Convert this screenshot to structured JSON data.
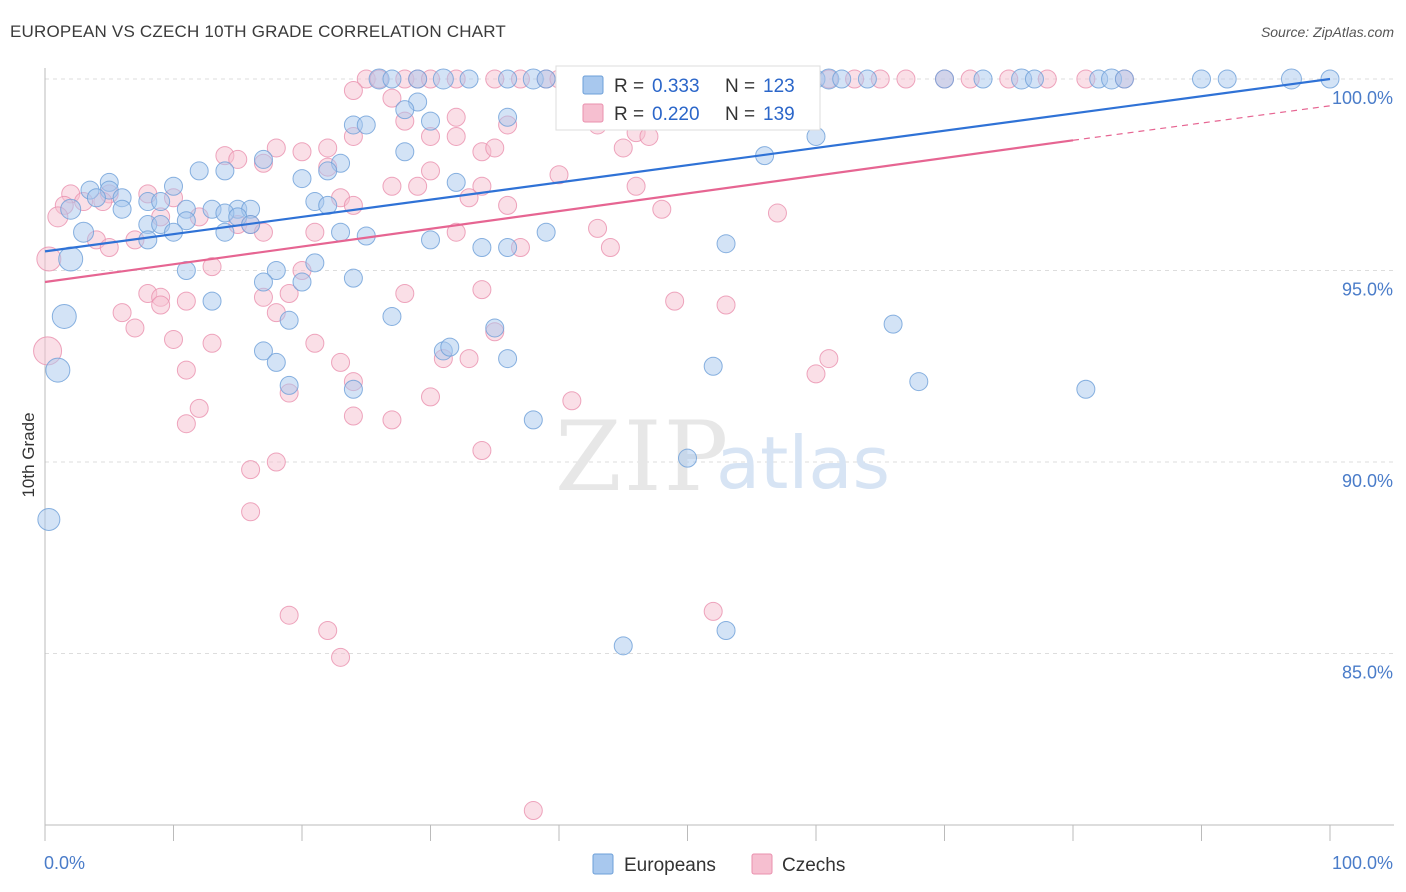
{
  "title": "EUROPEAN VS CZECH 10TH GRADE CORRELATION CHART",
  "source": "Source: ZipAtlas.com",
  "watermark": {
    "zip": "ZIP",
    "atlas": "atlas"
  },
  "colors": {
    "european_fill": "#a8c8ee",
    "european_stroke": "#6d9fd8",
    "european_line": "#2f72d6",
    "czech_fill": "#f6bfd0",
    "czech_stroke": "#ea90ae",
    "czech_line": "#e66592",
    "tick": "#4a7cc9",
    "grid": "#dddddd"
  },
  "legend_top": {
    "rows": [
      {
        "r_label": "R =",
        "r_value": "0.333",
        "n_label": "N =",
        "n_value": "123"
      },
      {
        "r_label": "R =",
        "r_value": "0.220",
        "n_label": "N =",
        "n_value": "139"
      }
    ]
  },
  "legend_bottom": {
    "items": [
      "Europeans",
      "Czechs"
    ]
  },
  "chart_data": {
    "type": "scatter",
    "title": "EUROPEAN VS CZECH 10TH GRADE CORRELATION CHART",
    "xlabel": "",
    "ylabel": "10th Grade",
    "xlim": [
      0,
      100
    ],
    "ylim": [
      80.5,
      100.8
    ],
    "x_tick_labels": [
      "0.0%",
      "100.0%"
    ],
    "y_ticks": [
      85,
      90,
      95,
      100
    ],
    "y_tick_labels": [
      "85.0%",
      "90.0%",
      "95.0%",
      "100.0%"
    ],
    "grid": true,
    "legend": "bottom-center",
    "series": [
      {
        "name": "Europeans",
        "r": 0.333,
        "n": 123,
        "trend": {
          "x": [
            0,
            100
          ],
          "y": [
            95.5,
            100.0
          ]
        },
        "points": [
          [
            26,
            100,
            10
          ],
          [
            27,
            100,
            9
          ],
          [
            29,
            100,
            9
          ],
          [
            31,
            100,
            10
          ],
          [
            33,
            100,
            9
          ],
          [
            36,
            100,
            9
          ],
          [
            38,
            100,
            10
          ],
          [
            39,
            100,
            9
          ],
          [
            41,
            100,
            9
          ],
          [
            42,
            100,
            10
          ],
          [
            44,
            100,
            9
          ],
          [
            45,
            100,
            9
          ],
          [
            48,
            100,
            10
          ],
          [
            50,
            100,
            9
          ],
          [
            51,
            100,
            9
          ],
          [
            53,
            100,
            10
          ],
          [
            55,
            100,
            9
          ],
          [
            56,
            100,
            9
          ],
          [
            60,
            100,
            9
          ],
          [
            61,
            100,
            10
          ],
          [
            62,
            100,
            9
          ],
          [
            64,
            100,
            9
          ],
          [
            70,
            100,
            9
          ],
          [
            73,
            100,
            9
          ],
          [
            76,
            100,
            10
          ],
          [
            77,
            100,
            9
          ],
          [
            82,
            100,
            9
          ],
          [
            83,
            100,
            10
          ],
          [
            84,
            100,
            9
          ],
          [
            90,
            100,
            9
          ],
          [
            92,
            100,
            9
          ],
          [
            97,
            100,
            10
          ],
          [
            100,
            100,
            9
          ],
          [
            29,
            99.4,
            9
          ],
          [
            28,
            99.2,
            9
          ],
          [
            30,
            98.9,
            9
          ],
          [
            24,
            98.8,
            9
          ],
          [
            25,
            98.8,
            9
          ],
          [
            36,
            99.0,
            9
          ],
          [
            60,
            98.5,
            9
          ],
          [
            28,
            98.1,
            9
          ],
          [
            17,
            97.9,
            9
          ],
          [
            23,
            97.8,
            9
          ],
          [
            12,
            97.6,
            9
          ],
          [
            14,
            97.6,
            9
          ],
          [
            22,
            97.6,
            9
          ],
          [
            56,
            98.0,
            9
          ],
          [
            20,
            97.4,
            9
          ],
          [
            32,
            97.3,
            9
          ],
          [
            5,
            97.3,
            9
          ],
          [
            10,
            97.2,
            9
          ],
          [
            3.5,
            97.1,
            9
          ],
          [
            5,
            97.1,
            9
          ],
          [
            4,
            96.9,
            9
          ],
          [
            6,
            96.9,
            9
          ],
          [
            8,
            96.8,
            9
          ],
          [
            9,
            96.8,
            9
          ],
          [
            21,
            96.8,
            9
          ],
          [
            22,
            96.7,
            9
          ],
          [
            13,
            96.6,
            9
          ],
          [
            2,
            96.6,
            10
          ],
          [
            6,
            96.6,
            9
          ],
          [
            11,
            96.6,
            9
          ],
          [
            15,
            96.6,
            9
          ],
          [
            16,
            96.6,
            9
          ],
          [
            14,
            96.5,
            9
          ],
          [
            15,
            96.4,
            9
          ],
          [
            11,
            96.3,
            9
          ],
          [
            8,
            96.2,
            9
          ],
          [
            9,
            96.2,
            9
          ],
          [
            16,
            96.2,
            9
          ],
          [
            10,
            96.0,
            9
          ],
          [
            14,
            96.0,
            9
          ],
          [
            23,
            96.0,
            9
          ],
          [
            25,
            95.9,
            9
          ],
          [
            3,
            96.0,
            10
          ],
          [
            30,
            95.8,
            9
          ],
          [
            8,
            95.8,
            9
          ],
          [
            34,
            95.6,
            9
          ],
          [
            36,
            95.6,
            9
          ],
          [
            53,
            95.7,
            9
          ],
          [
            39,
            96.0,
            9
          ],
          [
            21,
            95.2,
            9
          ],
          [
            2,
            95.3,
            12
          ],
          [
            11,
            95.0,
            9
          ],
          [
            18,
            95.0,
            9
          ],
          [
            24,
            94.8,
            9
          ],
          [
            17,
            94.7,
            9
          ],
          [
            20,
            94.7,
            9
          ],
          [
            13,
            94.2,
            9
          ],
          [
            1.5,
            93.8,
            12
          ],
          [
            27,
            93.8,
            9
          ],
          [
            19,
            93.7,
            9
          ],
          [
            35,
            93.5,
            9
          ],
          [
            66,
            93.6,
            9
          ],
          [
            17,
            92.9,
            9
          ],
          [
            31,
            92.9,
            9
          ],
          [
            31.5,
            93.0,
            9
          ],
          [
            18,
            92.6,
            9
          ],
          [
            36,
            92.7,
            9
          ],
          [
            52,
            92.5,
            9
          ],
          [
            1,
            92.4,
            12
          ],
          [
            19,
            92.0,
            9
          ],
          [
            24,
            91.9,
            9
          ],
          [
            68,
            92.1,
            9
          ],
          [
            81,
            91.9,
            9
          ],
          [
            38,
            91.1,
            9
          ],
          [
            50,
            90.1,
            9
          ],
          [
            0.3,
            88.5,
            11
          ],
          [
            53,
            85.6,
            9
          ],
          [
            45,
            85.2,
            9
          ]
        ]
      },
      {
        "name": "Czechs",
        "r": 0.22,
        "n": 139,
        "trend": {
          "x": [
            0,
            80
          ],
          "y": [
            94.7,
            98.4
          ]
        },
        "trend_extension": {
          "x": [
            80,
            100
          ],
          "y": [
            98.4,
            99.3
          ]
        },
        "points": [
          [
            25,
            100,
            9
          ],
          [
            26,
            100,
            9
          ],
          [
            28,
            100,
            9
          ],
          [
            29,
            100,
            9
          ],
          [
            30,
            100,
            9
          ],
          [
            32,
            100,
            9
          ],
          [
            35,
            100,
            9
          ],
          [
            37,
            100,
            9
          ],
          [
            39,
            100,
            9
          ],
          [
            40,
            100,
            9
          ],
          [
            41,
            100,
            9
          ],
          [
            43,
            100,
            9
          ],
          [
            44,
            100,
            9
          ],
          [
            46,
            100,
            9
          ],
          [
            48,
            100,
            9
          ],
          [
            50,
            100,
            9
          ],
          [
            52,
            100,
            9
          ],
          [
            54,
            100,
            9
          ],
          [
            57,
            100,
            9
          ],
          [
            59,
            100,
            9
          ],
          [
            61,
            100,
            9
          ],
          [
            63,
            100,
            9
          ],
          [
            65,
            100,
            9
          ],
          [
            67,
            100,
            9
          ],
          [
            70,
            100,
            9
          ],
          [
            72,
            100,
            9
          ],
          [
            75,
            100,
            9
          ],
          [
            78,
            100,
            9
          ],
          [
            81,
            100,
            9
          ],
          [
            84,
            100,
            9
          ],
          [
            24,
            99.7,
            9
          ],
          [
            27,
            99.5,
            9
          ],
          [
            28,
            98.9,
            9
          ],
          [
            32,
            99.0,
            9
          ],
          [
            36,
            98.8,
            9
          ],
          [
            43,
            98.8,
            9
          ],
          [
            46,
            98.6,
            9
          ],
          [
            24,
            98.5,
            9
          ],
          [
            30,
            98.5,
            9
          ],
          [
            32,
            98.5,
            9
          ],
          [
            18,
            98.2,
            9
          ],
          [
            20,
            98.1,
            9
          ],
          [
            22,
            98.2,
            9
          ],
          [
            34,
            98.1,
            9
          ],
          [
            35,
            98.2,
            9
          ],
          [
            45,
            98.2,
            9
          ],
          [
            47,
            98.5,
            9
          ],
          [
            14,
            98.0,
            9
          ],
          [
            15,
            97.9,
            9
          ],
          [
            17,
            97.8,
            9
          ],
          [
            22,
            97.7,
            9
          ],
          [
            30,
            97.6,
            9
          ],
          [
            40,
            97.5,
            9
          ],
          [
            27,
            97.2,
            9
          ],
          [
            29,
            97.2,
            9
          ],
          [
            34,
            97.2,
            9
          ],
          [
            46,
            97.2,
            9
          ],
          [
            2,
            97.0,
            9
          ],
          [
            5,
            97.0,
            9
          ],
          [
            8,
            97.0,
            9
          ],
          [
            10,
            96.9,
            9
          ],
          [
            23,
            96.9,
            9
          ],
          [
            33,
            96.9,
            9
          ],
          [
            24,
            96.7,
            9
          ],
          [
            36,
            96.7,
            9
          ],
          [
            48,
            96.6,
            9
          ],
          [
            57,
            96.5,
            9
          ],
          [
            1.5,
            96.7,
            9
          ],
          [
            3,
            96.8,
            9
          ],
          [
            4.5,
            96.8,
            9
          ],
          [
            1,
            96.4,
            10
          ],
          [
            9,
            96.4,
            9
          ],
          [
            12,
            96.4,
            9
          ],
          [
            15,
            96.2,
            9
          ],
          [
            16,
            96.2,
            9
          ],
          [
            17,
            96.0,
            9
          ],
          [
            21,
            96.0,
            9
          ],
          [
            32,
            96.0,
            9
          ],
          [
            43,
            96.1,
            9
          ],
          [
            44,
            95.6,
            9
          ],
          [
            37,
            95.6,
            9
          ],
          [
            4,
            95.8,
            9
          ],
          [
            5,
            95.6,
            9
          ],
          [
            0.3,
            95.3,
            12
          ],
          [
            7,
            95.8,
            9
          ],
          [
            13,
            95.1,
            9
          ],
          [
            20,
            95.0,
            9
          ],
          [
            8,
            94.4,
            9
          ],
          [
            9,
            94.3,
            9
          ],
          [
            17,
            94.3,
            9
          ],
          [
            19,
            94.4,
            9
          ],
          [
            28,
            94.4,
            9
          ],
          [
            34,
            94.5,
            9
          ],
          [
            49,
            94.2,
            9
          ],
          [
            6,
            93.9,
            9
          ],
          [
            9,
            94.1,
            9
          ],
          [
            11,
            94.2,
            9
          ],
          [
            18,
            93.9,
            9
          ],
          [
            53,
            94.1,
            9
          ],
          [
            7,
            93.5,
            9
          ],
          [
            10,
            93.2,
            9
          ],
          [
            13,
            93.1,
            9
          ],
          [
            35,
            93.4,
            9
          ],
          [
            21,
            93.1,
            9
          ],
          [
            0.2,
            92.9,
            14
          ],
          [
            11,
            92.4,
            9
          ],
          [
            23,
            92.6,
            9
          ],
          [
            31,
            92.7,
            9
          ],
          [
            33,
            92.7,
            9
          ],
          [
            61,
            92.7,
            9
          ],
          [
            24,
            92.1,
            9
          ],
          [
            19,
            91.8,
            9
          ],
          [
            30,
            91.7,
            9
          ],
          [
            41,
            91.6,
            9
          ],
          [
            60,
            92.3,
            9
          ],
          [
            12,
            91.4,
            9
          ],
          [
            11,
            91.0,
            9
          ],
          [
            24,
            91.2,
            9
          ],
          [
            27,
            91.1,
            9
          ],
          [
            34,
            90.3,
            9
          ],
          [
            18,
            90.0,
            9
          ],
          [
            16,
            89.8,
            9
          ],
          [
            16,
            88.7,
            9
          ],
          [
            52,
            86.1,
            9
          ],
          [
            19,
            86.0,
            9
          ],
          [
            22,
            85.6,
            9
          ],
          [
            23,
            84.9,
            9
          ],
          [
            38,
            80.9,
            9
          ]
        ]
      }
    ]
  }
}
